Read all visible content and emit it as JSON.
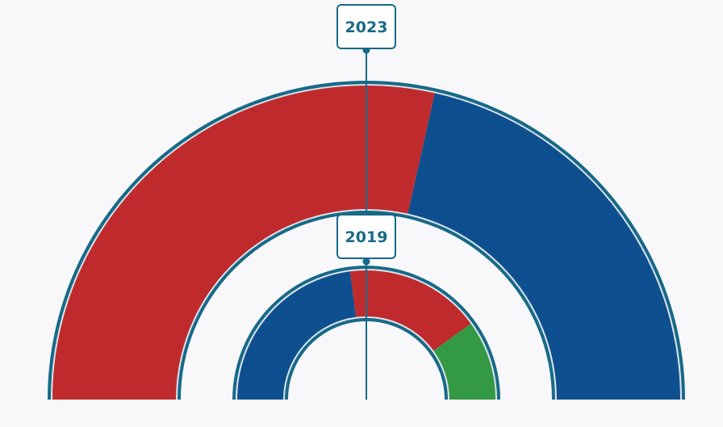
{
  "chart_data": {
    "type": "pie",
    "variant": "nested-semicircle-donut",
    "title": "",
    "legend": "none",
    "rings": [
      {
        "year": "2023",
        "position": "outer",
        "slices": [
          {
            "color": "#bf2b2d",
            "value": 57
          },
          {
            "color": "#0e4f8f",
            "value": 43
          }
        ]
      },
      {
        "year": "2019",
        "position": "inner",
        "slices": [
          {
            "color": "#0e4f8f",
            "value": 46
          },
          {
            "color": "#bf2b2d",
            "value": 34
          },
          {
            "color": "#339944",
            "value": 20
          }
        ]
      }
    ]
  },
  "colors": {
    "background": "#f8f8fb",
    "outline": "#176a87",
    "inner_outline": "#dde4ec",
    "label_text": "#176a87",
    "label_border": "#176a87",
    "label_fill": "#ffffff"
  }
}
